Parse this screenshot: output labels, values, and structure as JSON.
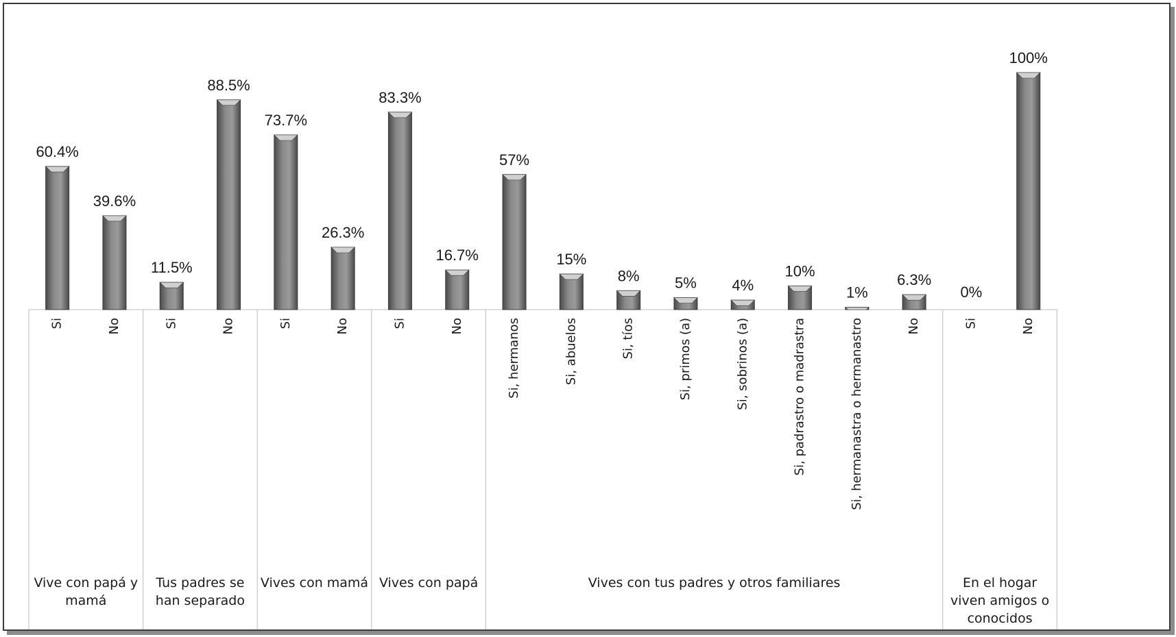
{
  "chart_data": {
    "type": "bar",
    "ylim": [
      0,
      100
    ],
    "colors": {
      "bar": "#8a8a8a",
      "bar_dark": "#4a4a4a",
      "bar_light": "#d0d0d0",
      "divider": "#bdbdbd"
    },
    "groups": [
      {
        "label": "Vive con papá y mamá",
        "bars": [
          {
            "category": "Si",
            "value": 60.4,
            "label": "60.4%"
          },
          {
            "category": "No",
            "value": 39.6,
            "label": "39.6%"
          }
        ]
      },
      {
        "label": "Tus padres se han separado",
        "bars": [
          {
            "category": "Si",
            "value": 11.5,
            "label": "11.5%"
          },
          {
            "category": "No",
            "value": 88.5,
            "label": "88.5%"
          }
        ]
      },
      {
        "label": "Vives con mamá",
        "bars": [
          {
            "category": "Si",
            "value": 73.7,
            "label": "73.7%"
          },
          {
            "category": "No",
            "value": 26.3,
            "label": "26.3%"
          }
        ]
      },
      {
        "label": "Vives con papá",
        "bars": [
          {
            "category": "Si",
            "value": 83.3,
            "label": "83.3%"
          },
          {
            "category": "No",
            "value": 16.7,
            "label": "16.7%"
          }
        ]
      },
      {
        "label": "Vives con tus padres y otros familiares",
        "bars": [
          {
            "category": "Si, hermanos",
            "value": 57,
            "label": "57%"
          },
          {
            "category": "Si, abuelos",
            "value": 15,
            "label": "15%"
          },
          {
            "category": "Si, tíos",
            "value": 8,
            "label": "8%"
          },
          {
            "category": "Si, primos (a)",
            "value": 5,
            "label": "5%"
          },
          {
            "category": "Si, sobrinos (a)",
            "value": 4,
            "label": "4%"
          },
          {
            "category": "Si, padrastro o madrastra",
            "value": 10,
            "label": "10%"
          },
          {
            "category": "Si, hermanastra o hermanastro",
            "value": 1,
            "label": "1%"
          },
          {
            "category": "No",
            "value": 6.3,
            "label": "6.3%"
          }
        ]
      },
      {
        "label": "En el hogar viven amigos o conocidos",
        "bars": [
          {
            "category": "Si",
            "value": 0,
            "label": "0%"
          },
          {
            "category": "No",
            "value": 100,
            "label": "100%"
          }
        ]
      }
    ]
  }
}
